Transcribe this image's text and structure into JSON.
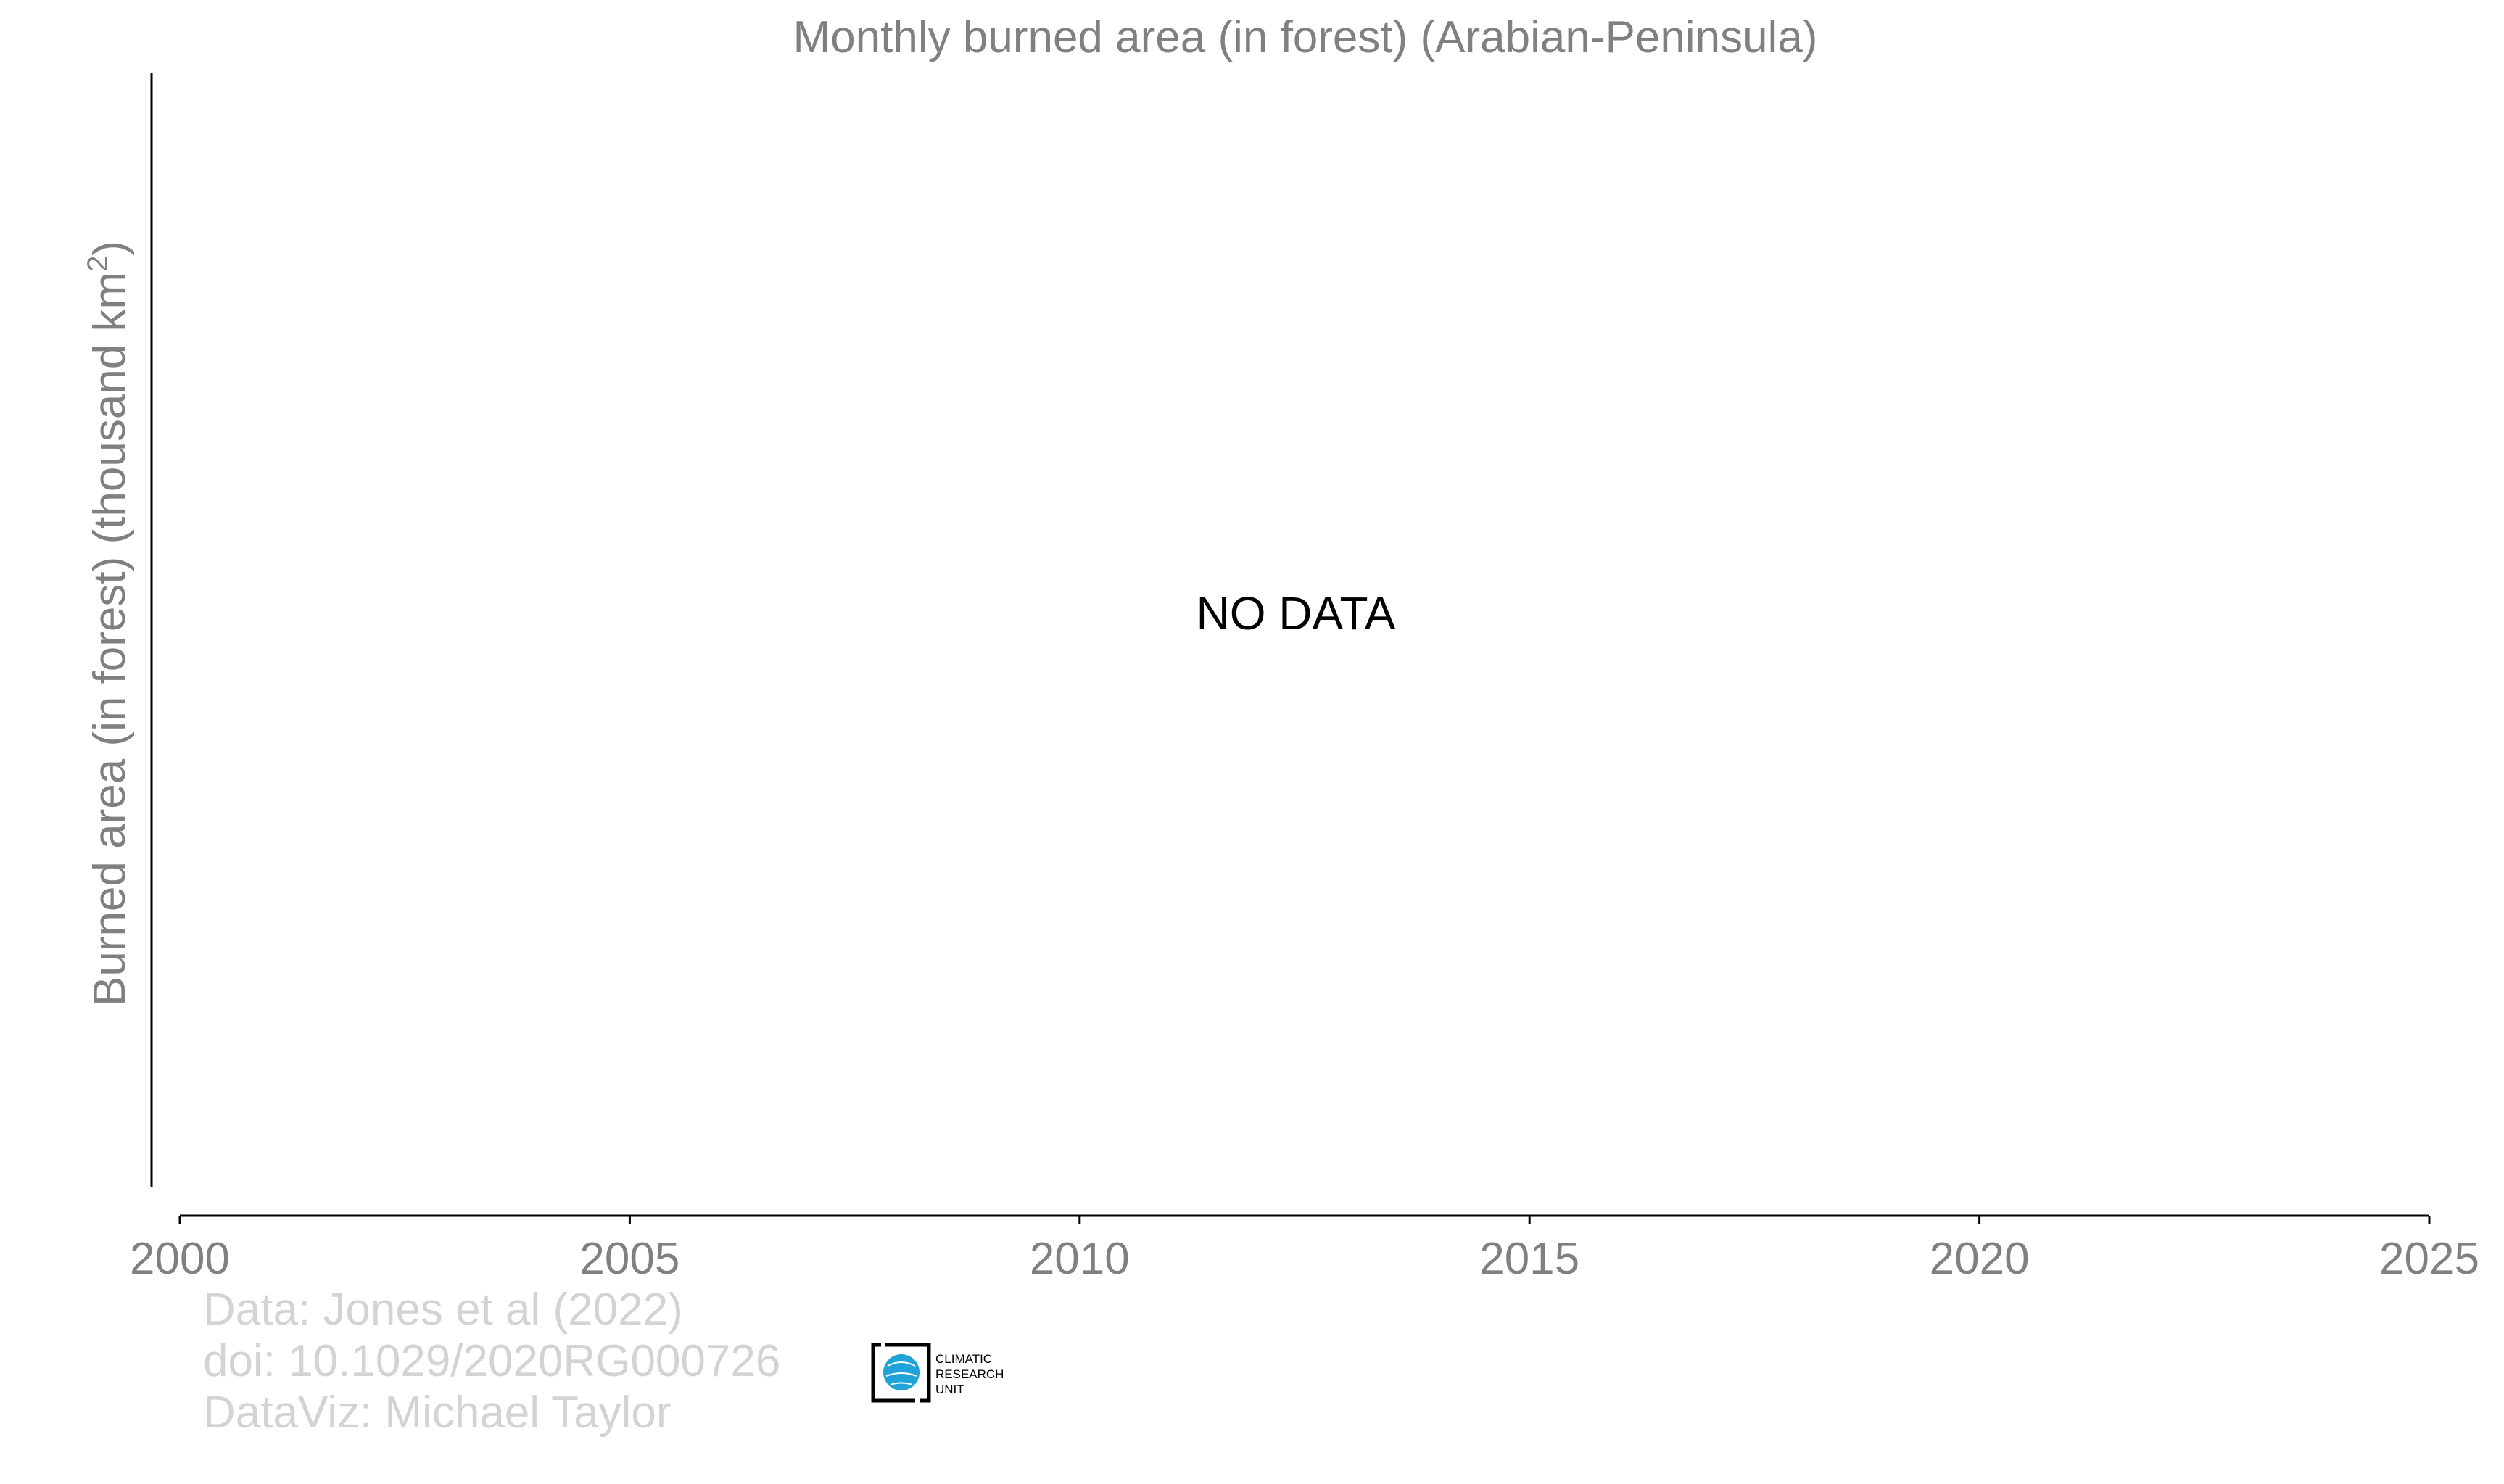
{
  "chart_data": {
    "type": "line",
    "title": "Monthly burned area (in forest) (Arabian-Peninsula)",
    "ylabel_text": "Burned area (in forest) (thousand km",
    "ylabel_superscript": "2",
    "ylabel_close": ")",
    "xlabel": "",
    "xlim": [
      2000,
      2025
    ],
    "x_ticks": [
      "2000",
      "2005",
      "2010",
      "2015",
      "2020",
      "2025"
    ],
    "series": [],
    "annotation": "NO DATA",
    "grid": false
  },
  "credits": {
    "line1": "Data: Jones et al (2022)",
    "line2": "doi: 10.1029/2020RG000726",
    "line3": "DataViz: Michael Taylor"
  },
  "logo": {
    "line1": "CLIMATIC",
    "line2": "RESEARCH",
    "line3": "UNIT"
  },
  "colors": {
    "text_muted": "#808080",
    "credit_text": "#d3d3d3",
    "axis": "#000000",
    "logo_globe": "#1fa3d9"
  }
}
